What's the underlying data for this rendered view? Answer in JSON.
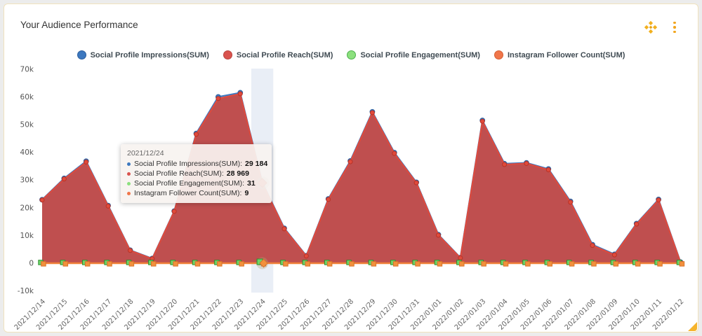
{
  "widget": {
    "title": "Your Audience Performance"
  },
  "header_icons": [
    {
      "name": "move-icon"
    },
    {
      "name": "more-options-icon"
    }
  ],
  "colors": {
    "accent_amber": "#f2a51d",
    "card_border": "#f0e2bd",
    "page_bg": "#ececec",
    "highlight_band": "#e9eef6",
    "tooltip_bg": "rgba(247,243,240,0.93)",
    "halo": "rgba(140,140,140,0.32)"
  },
  "legend": [
    {
      "label": "Social Profile Impressions(SUM)",
      "dot": "#3d78bf",
      "border": "#2d5f9e"
    },
    {
      "label": "Social Profile Reach(SUM)",
      "dot": "#d9534e",
      "border": "#b94540"
    },
    {
      "label": "Social Profile Engagement(SUM)",
      "dot": "#8ce07e",
      "border": "#4db04d"
    },
    {
      "label": "Instagram Follower Count(SUM)",
      "dot": "#f0764a",
      "border": "#d55f33"
    }
  ],
  "tooltip": {
    "date": "2021/12/24",
    "items": [
      {
        "label": "Social Profile Impressions(SUM)",
        "value": "29 184",
        "dot": "#3d78bf"
      },
      {
        "label": "Social Profile Reach(SUM)",
        "value": "28 969",
        "dot": "#d9534e"
      },
      {
        "label": "Social Profile Engagement(SUM)",
        "value": "31",
        "dot": "#8ce07e"
      },
      {
        "label": "Instagram Follower Count(SUM)",
        "value": "9",
        "dot": "#f0764a"
      }
    ]
  },
  "chart_data": {
    "type": "area",
    "title": "Your Audience Performance",
    "xlabel": "",
    "ylabel": "",
    "ylim": [
      -10000,
      70000
    ],
    "yticks": [
      "70k",
      "60k",
      "50k",
      "40k",
      "30k",
      "20k",
      "10k",
      "0",
      "-10k"
    ],
    "grid": false,
    "legend_position": "top",
    "highlight_index": 10,
    "x": [
      "2021/12/14",
      "2021/12/15",
      "2021/12/16",
      "2021/12/17",
      "2021/12/18",
      "2021/12/19",
      "2021/12/20",
      "2021/12/21",
      "2021/12/22",
      "2021/12/23",
      "2021/12/24",
      "2021/12/25",
      "2021/12/26",
      "2021/12/27",
      "2021/12/28",
      "2021/12/29",
      "2021/12/30",
      "2021/12/31",
      "2022/01/01",
      "2022/01/02",
      "2022/01/03",
      "2022/01/04",
      "2022/01/05",
      "2022/01/06",
      "2022/01/07",
      "2022/01/08",
      "2022/01/09",
      "2022/01/10",
      "2022/01/11",
      "2022/01/12"
    ],
    "series": [
      {
        "name": "Social Profile Impressions(SUM)",
        "style": "line",
        "color": "#3e79c0",
        "border": "#2d5f9e",
        "marker": "circle",
        "values": [
          22900,
          30600,
          36800,
          20800,
          4700,
          1700,
          18800,
          46800,
          60000,
          61500,
          29184,
          12600,
          2700,
          23200,
          36900,
          54600,
          39900,
          29200,
          10300,
          2000,
          51500,
          35900,
          36200,
          34000,
          22300,
          6700,
          3200,
          14300,
          23000,
          400
        ]
      },
      {
        "name": "Social Profile Reach(SUM)",
        "style": "area",
        "color": "#e04a3c",
        "border": "#b73327",
        "fill": "#bf4f4f",
        "marker": "circle",
        "values": [
          22800,
          30400,
          36500,
          20600,
          4600,
          1600,
          18700,
          46500,
          59400,
          61100,
          28969,
          12400,
          2600,
          23000,
          36600,
          54300,
          39600,
          29000,
          10100,
          1900,
          51200,
          35600,
          36000,
          33700,
          22000,
          6400,
          3000,
          14100,
          22800,
          300
        ]
      },
      {
        "name": "Social Profile Engagement(SUM)",
        "style": "line",
        "color": "#5cc95c",
        "border": "#2e8f2e",
        "fillmarker": "#6fd468",
        "marker": "square",
        "values": [
          30,
          30,
          30,
          30,
          30,
          30,
          30,
          30,
          30,
          30,
          31,
          30,
          30,
          30,
          30,
          30,
          30,
          30,
          30,
          30,
          30,
          30,
          30,
          30,
          30,
          30,
          30,
          30,
          30,
          30
        ]
      },
      {
        "name": "Instagram Follower Count(SUM)",
        "style": "line",
        "color": "#f0813a",
        "border": "#d8732b",
        "fillmarker": "#f2913c",
        "marker": "square",
        "values": [
          10,
          10,
          10,
          10,
          10,
          10,
          10,
          10,
          10,
          10,
          9,
          10,
          10,
          10,
          10,
          10,
          10,
          10,
          10,
          10,
          10,
          10,
          10,
          10,
          10,
          10,
          10,
          10,
          10,
          10
        ]
      }
    ]
  }
}
